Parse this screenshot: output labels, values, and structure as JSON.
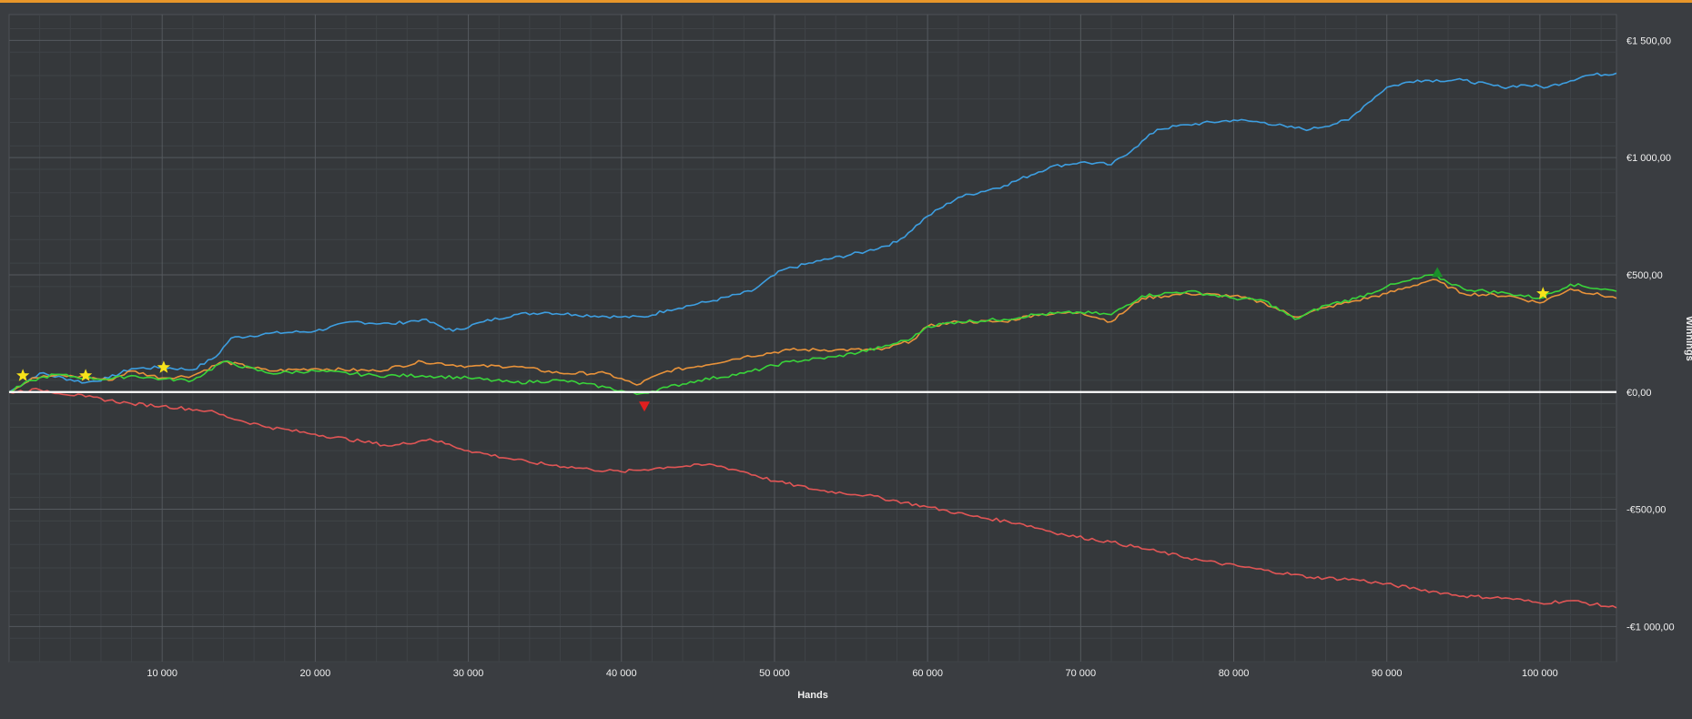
{
  "chart_data": {
    "type": "line",
    "xlabel": "Hands",
    "ylabel": "Winnings",
    "xlim": [
      0,
      105000
    ],
    "ylim": [
      -1150,
      1610
    ],
    "x_ticks": [
      10000,
      20000,
      30000,
      40000,
      50000,
      60000,
      70000,
      80000,
      90000,
      100000
    ],
    "x_tick_labels": [
      "10 000",
      "20 000",
      "30 000",
      "40 000",
      "50 000",
      "60 000",
      "70 000",
      "80 000",
      "90 000",
      "100 000"
    ],
    "y_ticks": [
      1500,
      1000,
      500,
      0,
      -500,
      -1000
    ],
    "y_tick_labels": [
      "€1 500,00",
      "€1 000,00",
      "€500,00",
      "€0,00",
      "-€500,00",
      "-€1 000,00"
    ],
    "grid": true,
    "series": [
      {
        "color": "#3d9ee0",
        "x": [
          0,
          2000,
          5000,
          6500,
          8000,
          10000,
          12000,
          13500,
          14500,
          17000,
          20000,
          22500,
          25000,
          27000,
          29000,
          31000,
          33000,
          35000,
          37000,
          40000,
          41500,
          43000,
          46000,
          48500,
          50500,
          53000,
          56000,
          58000,
          60000,
          62000,
          65000,
          68000,
          70000,
          72000,
          73500,
          75000,
          77000,
          80000,
          82000,
          83500,
          85000,
          87500,
          88500,
          90000,
          92000,
          95000,
          97500,
          99000,
          100500,
          103000,
          105000
        ],
        "y": [
          0,
          80,
          40,
          60,
          100,
          105,
          95,
          150,
          230,
          250,
          260,
          300,
          290,
          310,
          260,
          300,
          330,
          340,
          330,
          320,
          320,
          350,
          390,
          430,
          520,
          560,
          600,
          640,
          750,
          830,
          880,
          960,
          980,
          970,
          1040,
          1120,
          1140,
          1160,
          1150,
          1130,
          1120,
          1160,
          1220,
          1300,
          1330,
          1330,
          1300,
          1310,
          1300,
          1350,
          1360
        ]
      },
      {
        "color": "#e8923a",
        "x": [
          0,
          1500,
          3000,
          5000,
          6500,
          8000,
          10000,
          12000,
          14000,
          17000,
          20000,
          24000,
          27000,
          30000,
          33000,
          36000,
          39000,
          41000,
          43000,
          45000,
          48000,
          51000,
          54000,
          57000,
          59000,
          60000,
          62000,
          65000,
          67000,
          70000,
          72000,
          74000,
          77000,
          80000,
          82000,
          84000,
          86000,
          88000,
          90000,
          93000,
          95000,
          98000,
          100000,
          102000,
          105000
        ],
        "y": [
          0,
          60,
          70,
          65,
          50,
          90,
          60,
          70,
          130,
          90,
          100,
          90,
          130,
          110,
          110,
          80,
          80,
          30,
          90,
          110,
          150,
          180,
          180,
          180,
          220,
          280,
          300,
          300,
          330,
          340,
          300,
          400,
          420,
          410,
          380,
          320,
          360,
          390,
          420,
          480,
          420,
          410,
          380,
          440,
          400
        ]
      },
      {
        "color": "#39d43a",
        "x": [
          0,
          1500,
          3000,
          5000,
          6500,
          8000,
          10000,
          12000,
          14000,
          17000,
          20000,
          24000,
          27000,
          30000,
          33000,
          36000,
          39000,
          41000,
          43000,
          45000,
          48000,
          51000,
          54000,
          57000,
          59000,
          60000,
          62000,
          65000,
          67000,
          70000,
          72000,
          74000,
          77000,
          80000,
          82000,
          84000,
          86000,
          88000,
          90000,
          93000,
          95000,
          98000,
          100000,
          102000,
          105000
        ],
        "y": [
          0,
          50,
          75,
          60,
          55,
          70,
          55,
          50,
          130,
          80,
          90,
          70,
          70,
          60,
          40,
          50,
          20,
          -10,
          20,
          50,
          80,
          130,
          150,
          190,
          230,
          280,
          300,
          310,
          330,
          340,
          330,
          410,
          430,
          400,
          390,
          310,
          370,
          400,
          450,
          500,
          440,
          420,
          400,
          460,
          430
        ]
      },
      {
        "color": "#e05555",
        "x": [
          0,
          2000,
          5000,
          8000,
          10000,
          13000,
          15000,
          17000,
          20000,
          23000,
          25000,
          27500,
          30000,
          34000,
          38000,
          40000,
          43000,
          46000,
          48000,
          50000,
          53000,
          56000,
          60000,
          63000,
          66000,
          69000,
          72000,
          75000,
          78000,
          82000,
          85000,
          88000,
          92000,
          95000,
          98000,
          100000,
          102000,
          105000
        ],
        "y": [
          0,
          10,
          -20,
          -50,
          -60,
          -80,
          -120,
          -150,
          -180,
          -210,
          -230,
          -200,
          -250,
          -300,
          -330,
          -340,
          -320,
          -310,
          -340,
          -380,
          -420,
          -440,
          -490,
          -530,
          -560,
          -610,
          -640,
          -680,
          -720,
          -760,
          -790,
          -800,
          -840,
          -870,
          -880,
          -900,
          -890,
          -920
        ]
      }
    ],
    "markers": [
      {
        "type": "star",
        "color": "#f7e21a",
        "x": 900,
        "y": 70
      },
      {
        "type": "star",
        "color": "#f7e21a",
        "x": 5000,
        "y": 70
      },
      {
        "type": "star",
        "color": "#f7e21a",
        "x": 10100,
        "y": 105
      },
      {
        "type": "star",
        "color": "#f7e21a",
        "x": 100200,
        "y": 420
      },
      {
        "type": "triangle-down",
        "color": "#e01f1f",
        "x": 41500,
        "y": -60
      },
      {
        "type": "triangle-up",
        "color": "#1a8f2a",
        "x": 93300,
        "y": 510
      }
    ]
  }
}
